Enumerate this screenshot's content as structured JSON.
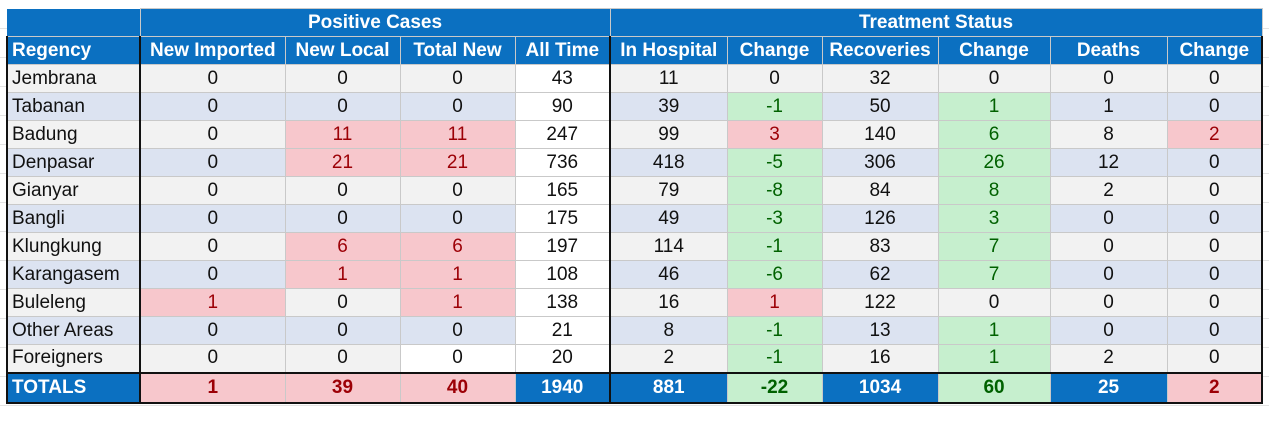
{
  "headers": {
    "group_positive": "Positive Cases",
    "group_treatment": "Treatment Status",
    "columns": [
      "Regency",
      "New Imported",
      "New Local",
      "Total New",
      "All Time",
      "In Hospital",
      "Change",
      "Recoveries",
      "Change",
      "Deaths",
      "Change"
    ]
  },
  "rows": [
    {
      "name": "Jembrana",
      "v": [
        "0",
        "0",
        "0",
        "43",
        "11",
        "0",
        "32",
        "0",
        "0",
        "0"
      ]
    },
    {
      "name": "Tabanan",
      "v": [
        "0",
        "0",
        "0",
        "90",
        "39",
        "-1",
        "50",
        "1",
        "1",
        "0"
      ]
    },
    {
      "name": "Badung",
      "v": [
        "0",
        "11",
        "11",
        "247",
        "99",
        "3",
        "140",
        "6",
        "8",
        "2"
      ]
    },
    {
      "name": "Denpasar",
      "v": [
        "0",
        "21",
        "21",
        "736",
        "418",
        "-5",
        "306",
        "26",
        "12",
        "0"
      ]
    },
    {
      "name": "Gianyar",
      "v": [
        "0",
        "0",
        "0",
        "165",
        "79",
        "-8",
        "84",
        "8",
        "2",
        "0"
      ]
    },
    {
      "name": "Bangli",
      "v": [
        "0",
        "0",
        "0",
        "175",
        "49",
        "-3",
        "126",
        "3",
        "0",
        "0"
      ]
    },
    {
      "name": "Klungkung",
      "v": [
        "0",
        "6",
        "6",
        "197",
        "114",
        "-1",
        "83",
        "7",
        "0",
        "0"
      ]
    },
    {
      "name": "Karangasem",
      "v": [
        "0",
        "1",
        "1",
        "108",
        "46",
        "-6",
        "62",
        "7",
        "0",
        "0"
      ]
    },
    {
      "name": "Buleleng",
      "v": [
        "1",
        "0",
        "1",
        "138",
        "16",
        "1",
        "122",
        "0",
        "0",
        "0"
      ]
    },
    {
      "name": "Other Areas",
      "v": [
        "0",
        "0",
        "0",
        "21",
        "8",
        "-1",
        "13",
        "1",
        "0",
        "0"
      ]
    },
    {
      "name": "Foreigners",
      "v": [
        "0",
        "0",
        "0",
        "20",
        "2",
        "-1",
        "16",
        "1",
        "2",
        "0"
      ]
    }
  ],
  "totals": {
    "name": "TOTALS",
    "v": [
      "1",
      "39",
      "40",
      "1940",
      "881",
      "-22",
      "1034",
      "60",
      "25",
      "2"
    ]
  },
  "colors": {
    "header_blue": "#0b70c1",
    "hot_fill": "#f7c7cc",
    "hot_text": "#9c0006",
    "cool_fill": "#c6efce",
    "cool_text": "#006100"
  }
}
